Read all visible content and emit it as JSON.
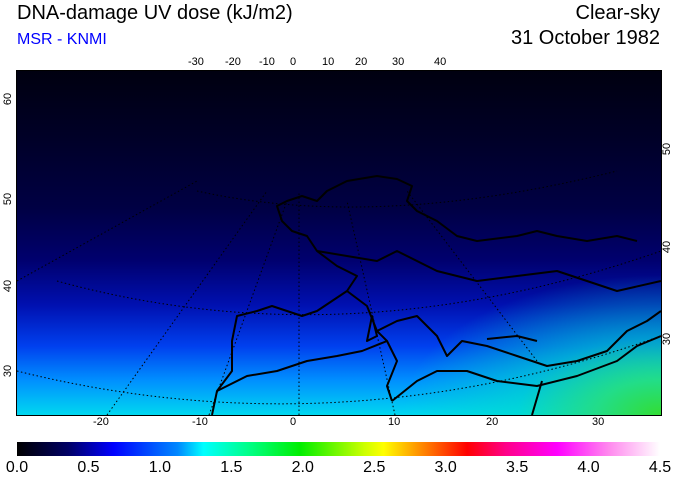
{
  "header": {
    "title": "DNA-damage UV dose (kJ/m2)",
    "subtitle": "MSR - KNMI",
    "condition": "Clear-sky",
    "date": "31 October 1982"
  },
  "map": {
    "top_lon_ticks": [
      "-30",
      "-20",
      "-10",
      "0",
      "10",
      "20",
      "30",
      "40"
    ],
    "bottom_lon_ticks": [
      "-20",
      "-10",
      "0",
      "10",
      "20",
      "30"
    ],
    "left_lat_ticks": [
      "60",
      "50",
      "40",
      "30"
    ],
    "right_lat_ticks": [
      "50",
      "40",
      "30"
    ]
  },
  "colorbar": {
    "labels": [
      "0.0",
      "0.5",
      "1.0",
      "1.5",
      "2.0",
      "2.5",
      "3.0",
      "3.5",
      "4.0",
      "4.5"
    ],
    "min": 0.0,
    "max": 4.5,
    "unit": "kJ/m2"
  }
}
